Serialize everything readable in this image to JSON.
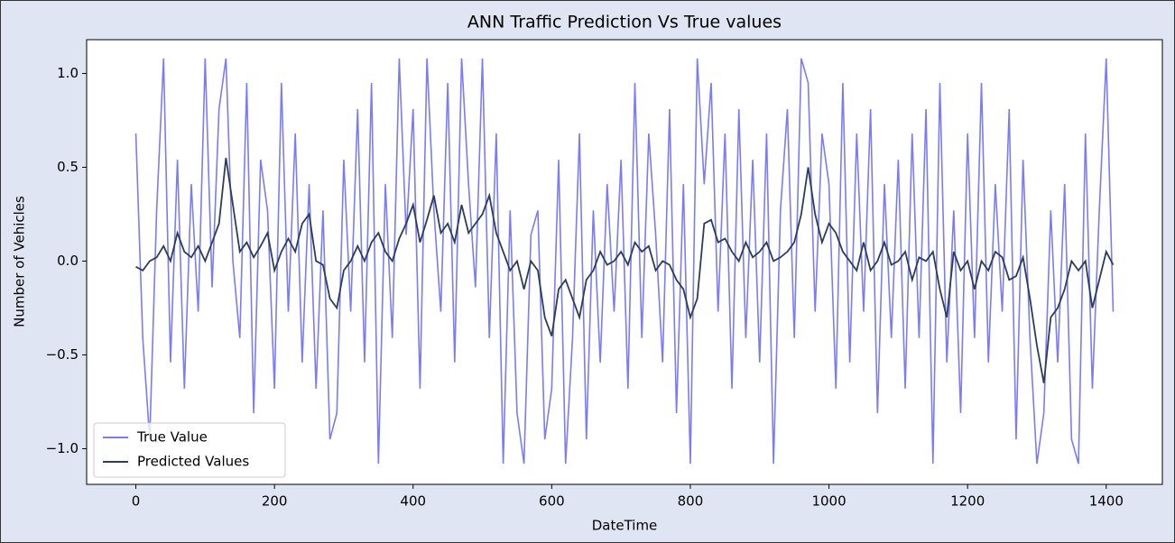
{
  "chart_data": {
    "type": "line",
    "title": "ANN Traffic Prediction Vs True values",
    "x_label": "DateTime",
    "y_label": "Number of Vehicles",
    "xlim": [
      -71,
      1481
    ],
    "ylim": [
      -1.19,
      1.18
    ],
    "xticks": [
      0,
      200,
      400,
      600,
      800,
      1000,
      1200,
      1400
    ],
    "yticks": [
      {
        "value": -1.0,
        "label": "−1.0"
      },
      {
        "value": -0.5,
        "label": "−0.5"
      },
      {
        "value": 0.0,
        "label": "0.0"
      },
      {
        "value": 0.5,
        "label": "0.5"
      },
      {
        "value": 1.0,
        "label": "1.0"
      }
    ],
    "legend": "lower left",
    "x": [
      0,
      10,
      20,
      30,
      40,
      50,
      60,
      70,
      80,
      90,
      100,
      110,
      120,
      130,
      140,
      150,
      160,
      170,
      180,
      190,
      200,
      210,
      220,
      230,
      240,
      250,
      260,
      270,
      280,
      290,
      300,
      310,
      320,
      330,
      340,
      350,
      360,
      370,
      380,
      390,
      400,
      410,
      420,
      430,
      440,
      450,
      460,
      470,
      480,
      490,
      500,
      510,
      520,
      530,
      540,
      550,
      560,
      570,
      580,
      590,
      600,
      610,
      620,
      630,
      640,
      650,
      660,
      670,
      680,
      690,
      700,
      710,
      720,
      730,
      740,
      750,
      760,
      770,
      780,
      790,
      800,
      810,
      820,
      830,
      840,
      850,
      860,
      870,
      880,
      890,
      900,
      910,
      920,
      930,
      940,
      950,
      960,
      970,
      980,
      990,
      1000,
      1010,
      1020,
      1030,
      1040,
      1050,
      1060,
      1070,
      1080,
      1090,
      1100,
      1110,
      1120,
      1130,
      1140,
      1150,
      1160,
      1170,
      1180,
      1190,
      1200,
      1210,
      1220,
      1230,
      1240,
      1250,
      1260,
      1270,
      1280,
      1290,
      1300,
      1310,
      1320,
      1330,
      1340,
      1350,
      1360,
      1370,
      1380,
      1390,
      1400,
      1410
    ],
    "series": [
      {
        "name": "True Value",
        "color": "#7b7bf7",
        "values": [
          0.68,
          -0.41,
          -0.95,
          0.27,
          1.08,
          -0.54,
          0.54,
          -0.68,
          0.41,
          -0.27,
          1.08,
          -0.14,
          0.81,
          1.08,
          0.0,
          -0.41,
          0.95,
          -0.81,
          0.54,
          0.27,
          -0.68,
          0.95,
          -0.27,
          0.68,
          -0.54,
          0.41,
          -0.68,
          0.27,
          -0.95,
          -0.81,
          0.54,
          -0.27,
          0.81,
          -0.54,
          0.95,
          -1.08,
          0.41,
          -0.41,
          1.08,
          0.14,
          0.81,
          -0.68,
          1.08,
          0.27,
          -0.27,
          0.95,
          -0.54,
          1.08,
          0.41,
          -0.14,
          1.08,
          -0.41,
          0.68,
          -1.08,
          0.27,
          -0.81,
          -1.08,
          0.14,
          0.27,
          -0.95,
          -0.68,
          0.54,
          -1.08,
          -0.41,
          0.68,
          -0.95,
          0.27,
          -0.54,
          0.41,
          -0.27,
          0.54,
          -0.68,
          0.95,
          -0.41,
          0.68,
          0.14,
          -0.54,
          0.81,
          -0.81,
          0.41,
          -1.08,
          1.08,
          0.41,
          0.95,
          -0.27,
          0.68,
          -0.68,
          0.81,
          -0.41,
          0.54,
          -0.54,
          0.68,
          -1.08,
          0.27,
          0.81,
          -0.41,
          1.08,
          0.95,
          -0.27,
          0.68,
          0.41,
          -0.68,
          0.95,
          -0.54,
          0.68,
          -0.27,
          0.81,
          -0.81,
          0.41,
          -0.41,
          0.54,
          -0.68,
          0.68,
          -0.41,
          0.81,
          -1.08,
          0.95,
          -0.54,
          0.27,
          -0.81,
          0.68,
          -0.41,
          0.95,
          -0.54,
          0.41,
          -0.27,
          0.81,
          -0.95,
          0.54,
          -0.41,
          -1.08,
          -0.81,
          0.27,
          -0.54,
          0.41,
          -0.95,
          -1.08,
          0.68,
          -0.68,
          0.27,
          1.08,
          -0.27
        ]
      },
      {
        "name": "Predicted Values",
        "color": "#2c3e55",
        "values": [
          -0.03,
          -0.05,
          0.0,
          0.02,
          0.08,
          0.0,
          0.15,
          0.05,
          0.02,
          0.08,
          0.0,
          0.1,
          0.2,
          0.55,
          0.3,
          0.05,
          0.1,
          0.02,
          0.08,
          0.15,
          -0.05,
          0.05,
          0.12,
          0.05,
          0.2,
          0.25,
          0.0,
          -0.02,
          -0.2,
          -0.25,
          -0.05,
          0.0,
          0.08,
          0.0,
          0.1,
          0.15,
          0.05,
          0.0,
          0.12,
          0.2,
          0.3,
          0.1,
          0.22,
          0.35,
          0.15,
          0.2,
          0.1,
          0.3,
          0.15,
          0.2,
          0.25,
          0.35,
          0.15,
          0.05,
          -0.05,
          0.0,
          -0.15,
          0.0,
          -0.05,
          -0.3,
          -0.4,
          -0.15,
          -0.1,
          -0.2,
          -0.3,
          -0.1,
          -0.05,
          0.05,
          -0.02,
          0.0,
          0.05,
          -0.02,
          0.1,
          0.05,
          0.08,
          -0.05,
          0.0,
          -0.02,
          -0.1,
          -0.15,
          -0.3,
          -0.2,
          0.2,
          0.22,
          0.1,
          0.12,
          0.05,
          0.0,
          0.1,
          0.02,
          0.05,
          0.1,
          0.0,
          0.02,
          0.05,
          0.1,
          0.25,
          0.5,
          0.25,
          0.1,
          0.2,
          0.15,
          0.05,
          0.0,
          -0.05,
          0.1,
          -0.05,
          0.0,
          0.1,
          -0.02,
          0.0,
          0.05,
          -0.1,
          0.02,
          0.0,
          0.05,
          -0.15,
          -0.3,
          0.05,
          -0.05,
          0.0,
          -0.15,
          0.0,
          -0.05,
          0.05,
          0.02,
          -0.1,
          -0.08,
          0.02,
          -0.2,
          -0.45,
          -0.65,
          -0.3,
          -0.25,
          -0.15,
          0.0,
          -0.05,
          0.0,
          -0.25,
          -0.1,
          0.05,
          -0.02
        ]
      }
    ]
  }
}
